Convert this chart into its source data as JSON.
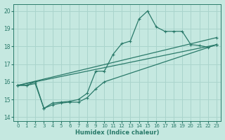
{
  "xlabel": "Humidex (Indice chaleur)",
  "ylabel": "",
  "xlim": [
    -0.5,
    23.5
  ],
  "ylim": [
    13.8,
    20.4
  ],
  "yticks": [
    14,
    15,
    16,
    17,
    18,
    19,
    20
  ],
  "xticks": [
    0,
    1,
    2,
    3,
    4,
    5,
    6,
    7,
    8,
    9,
    10,
    11,
    12,
    13,
    14,
    15,
    16,
    17,
    18,
    19,
    20,
    21,
    22,
    23
  ],
  "bg_color": "#c5e8e0",
  "grid_color": "#aad4cc",
  "line_color": "#2a7a6a",
  "line1_x": [
    0,
    1,
    2,
    3,
    4,
    5,
    6,
    7,
    8,
    9,
    10,
    11,
    12,
    13,
    14,
    15,
    16,
    17,
    18,
    19,
    20,
    21,
    22,
    23
  ],
  "line1_y": [
    15.8,
    15.8,
    16.0,
    14.5,
    14.8,
    14.85,
    14.9,
    15.0,
    15.35,
    16.6,
    16.6,
    17.55,
    18.15,
    18.3,
    19.55,
    20.0,
    19.1,
    18.85,
    18.85,
    18.85,
    18.1,
    18.05,
    17.95,
    18.1
  ],
  "line2_x": [
    0,
    1,
    2,
    3,
    4,
    5,
    6,
    7,
    8,
    9,
    10,
    23
  ],
  "line2_y": [
    15.8,
    15.8,
    15.9,
    14.5,
    14.7,
    14.8,
    14.85,
    14.85,
    15.1,
    15.6,
    16.0,
    18.1
  ],
  "line3_x": [
    0,
    23
  ],
  "line3_y": [
    15.8,
    18.1
  ],
  "line4_x": [
    0,
    23
  ],
  "line4_y": [
    15.8,
    18.5
  ]
}
